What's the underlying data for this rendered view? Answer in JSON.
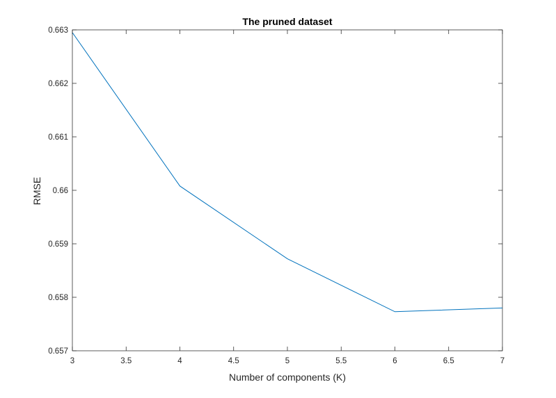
{
  "chart_data": {
    "type": "line",
    "title": "The pruned dataset",
    "xlabel": "Number of components (K)",
    "ylabel": "RMSE",
    "x": [
      3,
      4,
      5,
      6,
      7
    ],
    "series": [
      {
        "values": [
          0.66295,
          0.66008,
          0.65872,
          0.65773,
          0.6578
        ]
      }
    ],
    "xlim": [
      3,
      7
    ],
    "ylim": [
      0.657,
      0.663
    ],
    "xticks": [
      "3",
      "3.5",
      "4",
      "4.5",
      "5",
      "5.5",
      "6",
      "6.5",
      "7"
    ],
    "yticks": [
      "0.657",
      "0.658",
      "0.659",
      "0.66",
      "0.661",
      "0.662",
      "0.663"
    ],
    "grid": false,
    "box": true,
    "line_color": "#0072BD",
    "axis_color": "#262626"
  }
}
